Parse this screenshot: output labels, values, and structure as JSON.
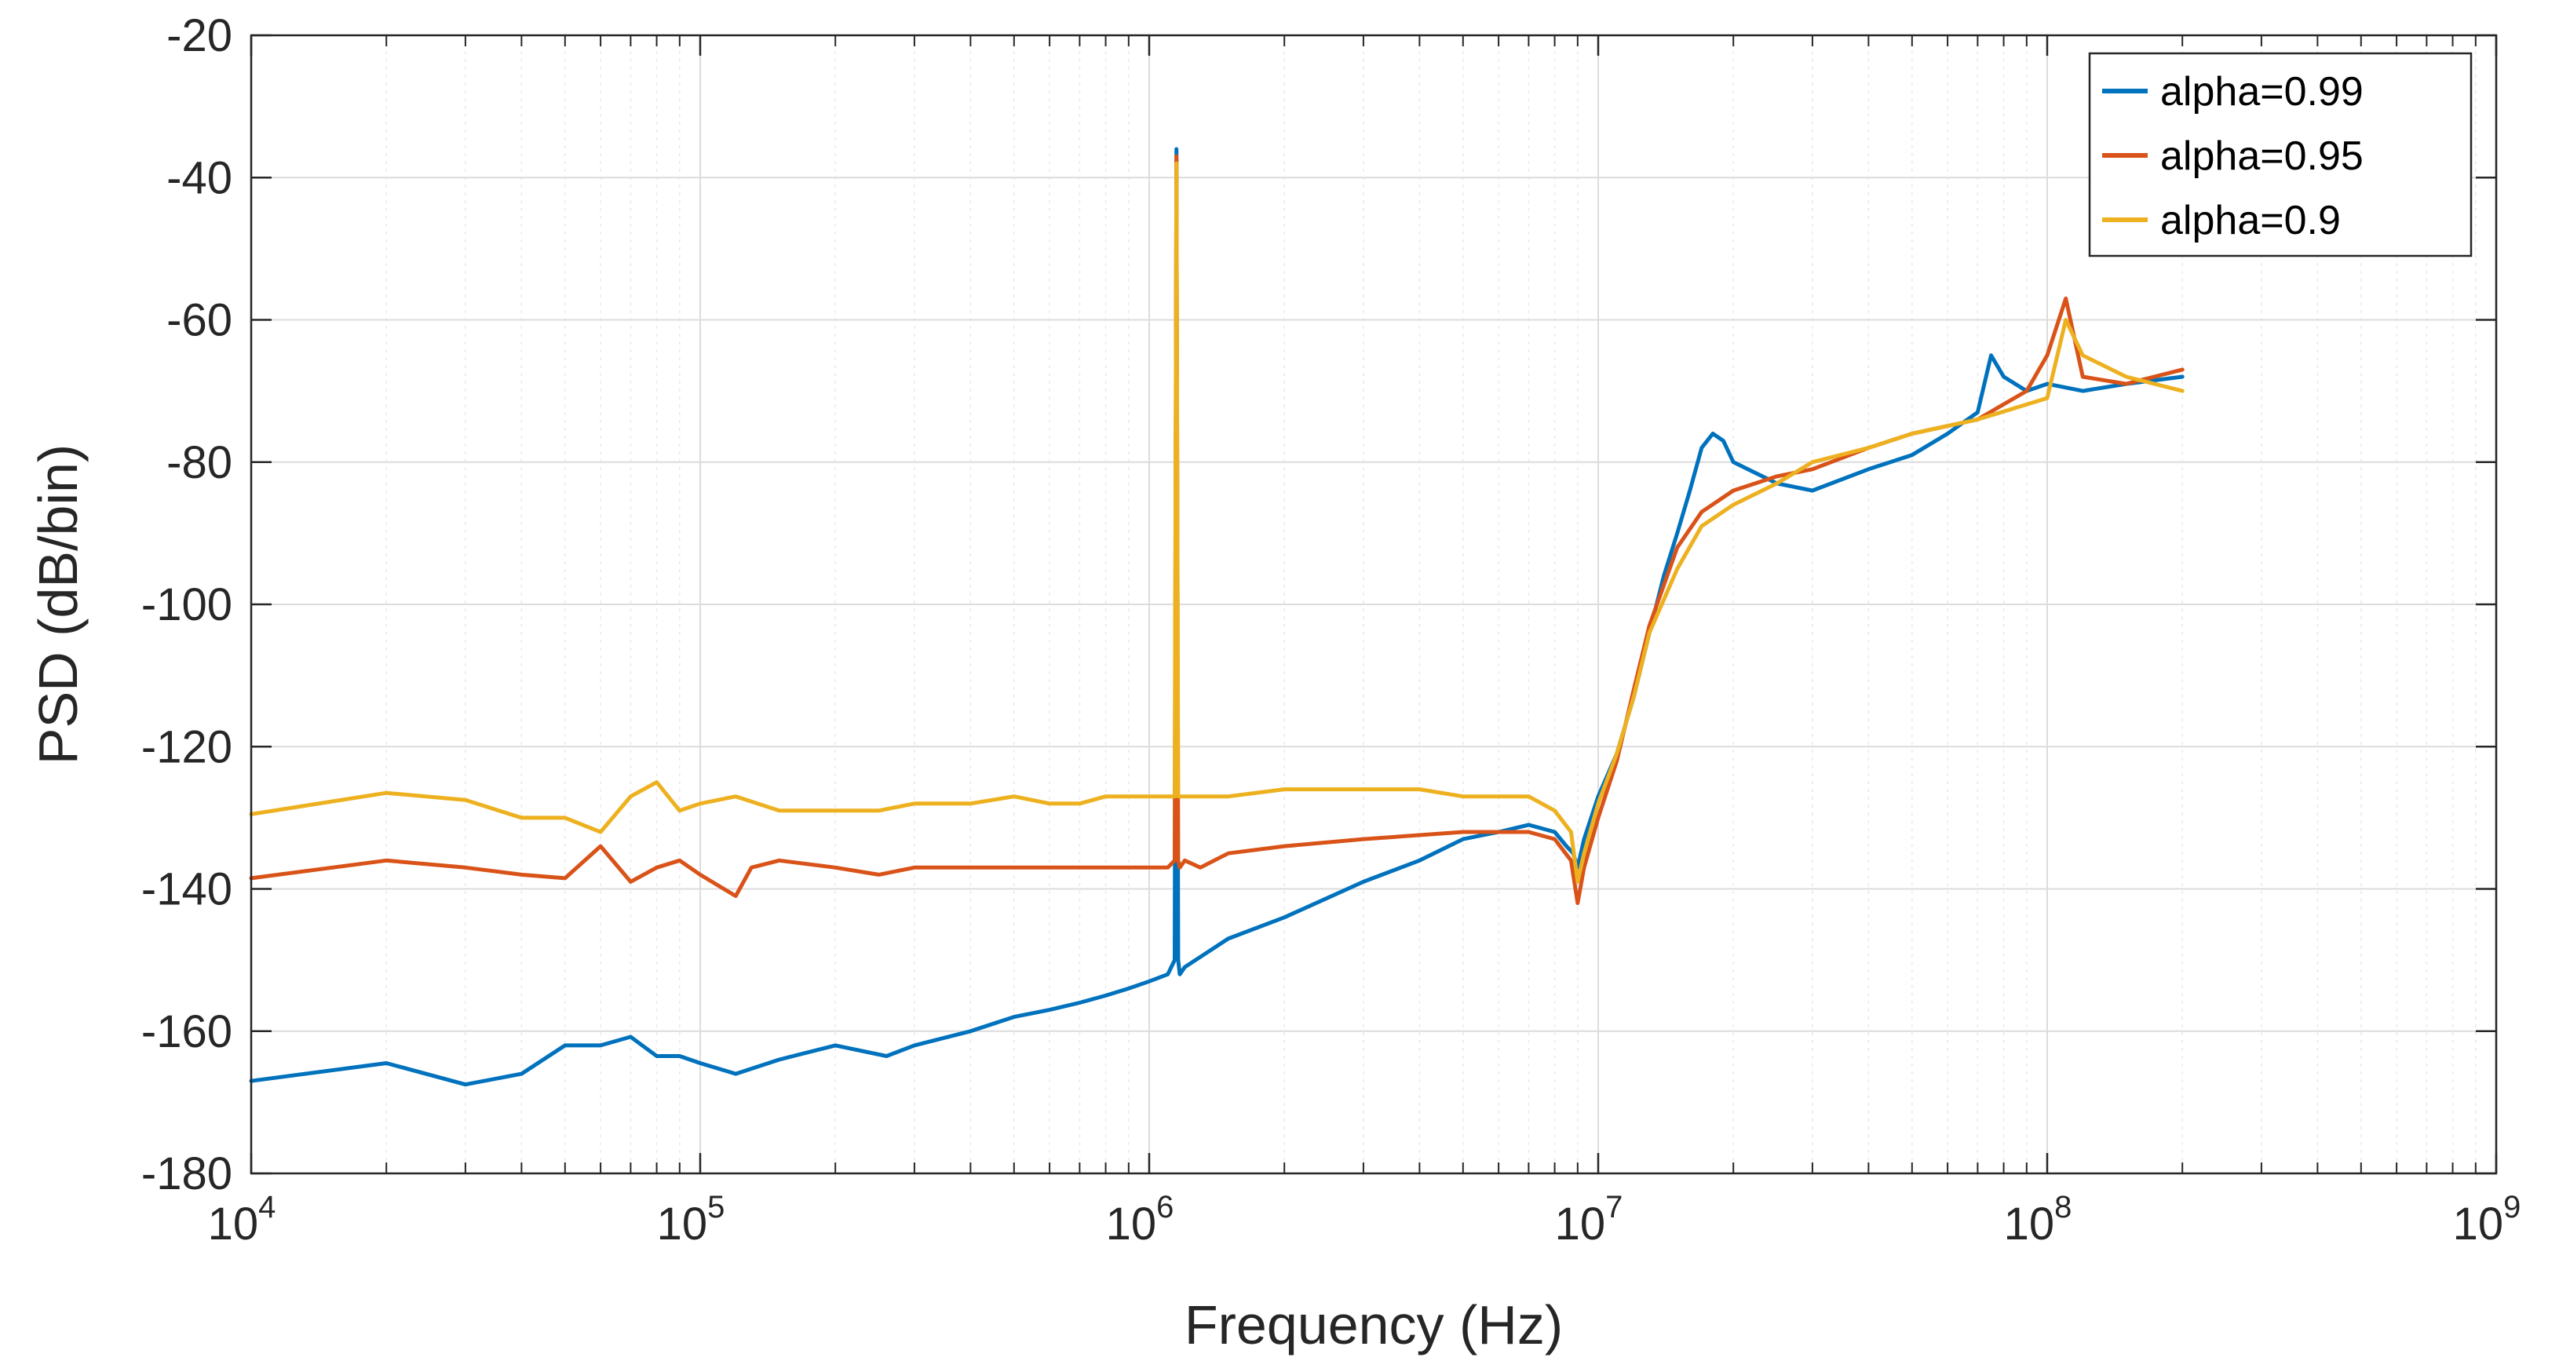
{
  "chart_data": {
    "type": "line",
    "title": "",
    "xlabel": "Frequency (Hz)",
    "ylabel": "PSD (dB/bin)",
    "xscale": "log",
    "xlim": [
      10000,
      1000000000
    ],
    "ylim": [
      -180,
      -20
    ],
    "x_tick_labels": [
      {
        "base": "10",
        "exp": "4"
      },
      {
        "base": "10",
        "exp": "5"
      },
      {
        "base": "10",
        "exp": "6"
      },
      {
        "base": "10",
        "exp": "7"
      },
      {
        "base": "10",
        "exp": "8"
      },
      {
        "base": "10",
        "exp": "9"
      }
    ],
    "y_ticks": [
      -180,
      -160,
      -140,
      -120,
      -100,
      -80,
      -60,
      -40,
      -20
    ],
    "grid": true,
    "legend_position": "top-right",
    "series": [
      {
        "name": "alpha=0.99",
        "color": "#0072BD",
        "x": [
          10000,
          20000,
          30000,
          40000,
          50000,
          60000,
          70000,
          80000,
          90000,
          100000,
          120000,
          150000,
          200000,
          260000,
          300000,
          400000,
          500000,
          600000,
          700000,
          800000,
          900000,
          1000000,
          1100000,
          1140000,
          1150000,
          1160000,
          1170000,
          1200000,
          1500000,
          2000000,
          3000000,
          4000000,
          5000000,
          6000000,
          7000000,
          8000000,
          8500000,
          8800000,
          9000000,
          9300000,
          10000000,
          11000000,
          12000000,
          13000000,
          14000000,
          15000000,
          16000000,
          17000000,
          18000000,
          19000000,
          20000000,
          25000000,
          30000000,
          40000000,
          50000000,
          60000000,
          70000000,
          75000000,
          80000000,
          90000000,
          100000000,
          120000000,
          150000000,
          200000000
        ],
        "y": [
          -167,
          -164.5,
          -167.5,
          -166,
          -162,
          -162,
          -160.8,
          -163.5,
          -163.5,
          -164.5,
          -166,
          -164,
          -162,
          -163.5,
          -162,
          -160,
          -158,
          -157,
          -156,
          -155,
          -154,
          -153,
          -152,
          -150,
          -36,
          -150,
          -152,
          -151,
          -147,
          -144,
          -139,
          -136,
          -133,
          -132,
          -131,
          -132,
          -134,
          -135,
          -137,
          -133,
          -127,
          -121,
          -113,
          -104,
          -96,
          -90,
          -84,
          -78,
          -76,
          -77,
          -80,
          -83,
          -84,
          -81,
          -79,
          -76,
          -73,
          -65,
          -68,
          -70,
          -69,
          -70,
          -69,
          -68
        ]
      },
      {
        "name": "alpha=0.95",
        "color": "#D95319",
        "x": [
          10000,
          20000,
          30000,
          40000,
          50000,
          60000,
          70000,
          80000,
          90000,
          100000,
          120000,
          130000,
          150000,
          200000,
          250000,
          300000,
          400000,
          500000,
          700000,
          1000000,
          1100000,
          1140000,
          1150000,
          1160000,
          1170000,
          1200000,
          1300000,
          1500000,
          2000000,
          3000000,
          5000000,
          7000000,
          8000000,
          8700000,
          9000000,
          9300000,
          10000000,
          11000000,
          12000000,
          13000000,
          15000000,
          17000000,
          20000000,
          25000000,
          30000000,
          40000000,
          50000000,
          70000000,
          90000000,
          100000000,
          110000000,
          120000000,
          150000000,
          200000000
        ],
        "y": [
          -138.5,
          -136,
          -137,
          -138,
          -138.5,
          -134,
          -139,
          -137,
          -136,
          -138,
          -141,
          -137,
          -136,
          -137,
          -138,
          -137,
          -137,
          -137,
          -137,
          -137,
          -137,
          -136,
          -37,
          -136,
          -137,
          -136,
          -137,
          -135,
          -134,
          -133,
          -132,
          -132,
          -133,
          -136,
          -142,
          -137,
          -130,
          -122,
          -112,
          -103,
          -92,
          -87,
          -84,
          -82,
          -81,
          -78,
          -76,
          -74,
          -70,
          -65,
          -57,
          -68,
          -69,
          -67
        ]
      },
      {
        "name": "alpha=0.9",
        "color": "#EDB120",
        "x": [
          10000,
          20000,
          30000,
          40000,
          50000,
          60000,
          70000,
          80000,
          90000,
          100000,
          120000,
          150000,
          200000,
          250000,
          300000,
          400000,
          500000,
          600000,
          700000,
          800000,
          1000000,
          1100000,
          1140000,
          1150000,
          1160000,
          1170000,
          1200000,
          1500000,
          2000000,
          3000000,
          4000000,
          5000000,
          7000000,
          8000000,
          8700000,
          9000000,
          9300000,
          10000000,
          11000000,
          12000000,
          13000000,
          15000000,
          17000000,
          20000000,
          25000000,
          30000000,
          40000000,
          50000000,
          70000000,
          100000000,
          110000000,
          120000000,
          150000000,
          200000000
        ],
        "y": [
          -129.5,
          -126.5,
          -127.5,
          -130,
          -130,
          -132,
          -127,
          -125,
          -129,
          -128,
          -127,
          -129,
          -129,
          -129,
          -128,
          -128,
          -127,
          -128,
          -128,
          -127,
          -127,
          -127,
          -127,
          -38,
          -127,
          -127,
          -127,
          -127,
          -126,
          -126,
          -126,
          -127,
          -127,
          -129,
          -132,
          -139,
          -135,
          -128,
          -121,
          -113,
          -104,
          -95,
          -89,
          -86,
          -83,
          -80,
          -78,
          -76,
          -74,
          -71,
          -60,
          -65,
          -68,
          -70
        ]
      }
    ]
  }
}
